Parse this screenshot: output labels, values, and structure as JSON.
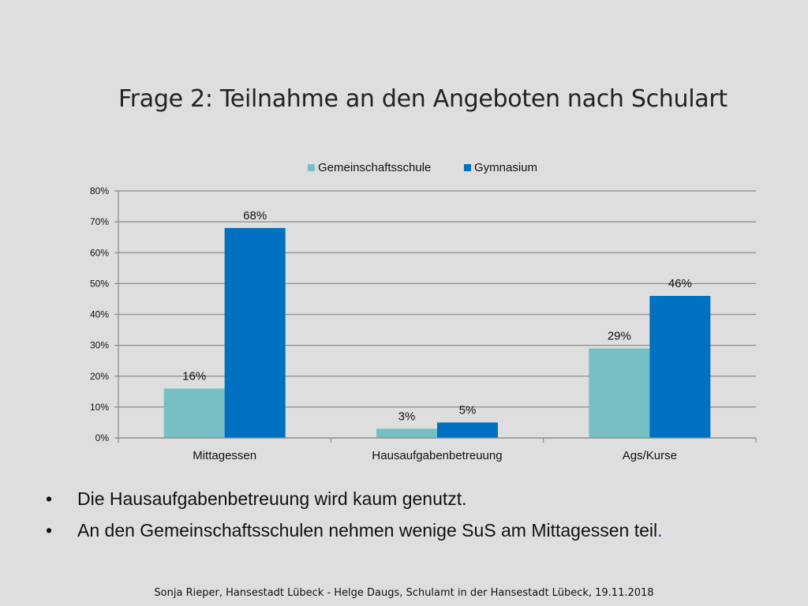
{
  "slide": {
    "title": "Frage 2: Teilnahme an den Angeboten nach Schulart",
    "bullets": [
      "Die Hausaufgabenbetreuung wird kaum genutzt.",
      "An den Gemeinschaftsschulen nehmen wenige SuS am Mittagessen teil"
    ],
    "bullet_trailing": ".",
    "bullet_symbol": "•",
    "footer": "Sonja Rieper, Hansestadt Lübeck  - Helge Daugs, Schulamt in der Hansestadt Lübeck, 19.11.2018"
  },
  "chart_data": {
    "type": "bar",
    "categories": [
      "Mittagessen",
      "Hausaufgabenbetreuung",
      "Ags/Kurse"
    ],
    "series": [
      {
        "name": "Gemeinschaftsschule",
        "values": [
          16,
          3,
          29
        ],
        "labels": [
          "16%",
          "3%",
          "29%"
        ],
        "color": "#76bfc4"
      },
      {
        "name": "Gymnasium",
        "values": [
          68,
          5,
          46
        ],
        "labels": [
          "68%",
          "5%",
          "46%"
        ],
        "color": "#0070c0"
      }
    ],
    "ylim": [
      0,
      80
    ],
    "yticks": [
      "0%",
      "10%",
      "20%",
      "30%",
      "40%",
      "50%",
      "60%",
      "70%",
      "80%"
    ],
    "grid": true,
    "legend": "top"
  },
  "colors": {
    "background": "#dedede",
    "gridline": "#8c8c8c",
    "axis": "#8c8c8c"
  }
}
